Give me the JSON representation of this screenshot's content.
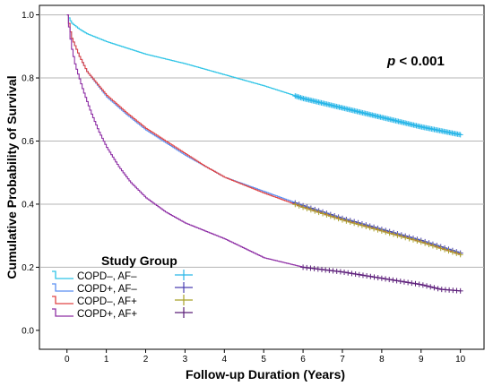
{
  "chart_data": {
    "type": "line",
    "title": "",
    "xlabel": "Follow-up Duration (Years)",
    "ylabel": "Cumulative Probability of Survival",
    "annotation": {
      "p_symbol": "p",
      "p_text": " < 0.001"
    },
    "xlim": [
      -0.7,
      10.6
    ],
    "ylim": [
      -0.06,
      1.03
    ],
    "xticks": [
      0,
      1,
      2,
      3,
      4,
      5,
      6,
      7,
      8,
      9,
      10
    ],
    "yticks": [
      0.0,
      0.2,
      0.4,
      0.6,
      0.8,
      1.0
    ],
    "ytick_labels": [
      "0.0",
      "0.2",
      "0.4",
      "0.6",
      "0.8",
      "1.0"
    ],
    "gridlines_y": [
      0.2,
      0.4,
      0.6,
      0.8,
      1.0
    ],
    "legend": {
      "title": "Study Group",
      "placement": "lower-left"
    },
    "series": [
      {
        "name": "COPD–, AF–",
        "color": "#2ec4e6",
        "censor_color": "#29b6e8",
        "censor_from": 5.8,
        "censor_density": "dense",
        "x": [
          0,
          0.1,
          0.3,
          0.5,
          1,
          1.5,
          2,
          2.5,
          3,
          4,
          5,
          6,
          7,
          8,
          9,
          10
        ],
        "y": [
          1.0,
          0.975,
          0.955,
          0.94,
          0.915,
          0.895,
          0.875,
          0.86,
          0.845,
          0.81,
          0.775,
          0.735,
          0.705,
          0.675,
          0.645,
          0.62
        ]
      },
      {
        "name": "COPD+, AF–",
        "color": "#5b8ff2",
        "censor_color": "#4a3fb0",
        "censor_from": 5.8,
        "censor_density": "sparse",
        "x": [
          0,
          0.1,
          0.3,
          0.5,
          1,
          1.5,
          2,
          2.5,
          3,
          3.5,
          4,
          5,
          6,
          7,
          8,
          9,
          10
        ],
        "y": [
          1.0,
          0.93,
          0.87,
          0.82,
          0.74,
          0.685,
          0.635,
          0.595,
          0.555,
          0.52,
          0.485,
          0.44,
          0.395,
          0.355,
          0.32,
          0.285,
          0.245
        ]
      },
      {
        "name": "COPD–, AF+",
        "color": "#e04545",
        "censor_color": "#a8a028",
        "censor_from": 5.8,
        "censor_density": "sparse",
        "x": [
          0,
          0.1,
          0.3,
          0.5,
          1,
          1.5,
          2,
          2.5,
          3,
          3.5,
          4,
          5,
          6,
          7,
          8,
          9,
          10
        ],
        "y": [
          1.0,
          0.93,
          0.87,
          0.82,
          0.745,
          0.69,
          0.64,
          0.6,
          0.56,
          0.52,
          0.485,
          0.435,
          0.39,
          0.35,
          0.315,
          0.28,
          0.24
        ]
      },
      {
        "name": "COPD+, AF+",
        "color": "#8e2fa5",
        "censor_color": "#5a1f78",
        "censor_from": 6.0,
        "censor_density": "sparse",
        "x": [
          0,
          0.1,
          0.2,
          0.4,
          0.6,
          0.8,
          1,
          1.3,
          1.6,
          2,
          2.5,
          3,
          4,
          5,
          6,
          7,
          8,
          9,
          9.5,
          10
        ],
        "y": [
          1.0,
          0.9,
          0.84,
          0.76,
          0.69,
          0.63,
          0.58,
          0.52,
          0.47,
          0.42,
          0.375,
          0.34,
          0.29,
          0.23,
          0.2,
          0.185,
          0.165,
          0.145,
          0.13,
          0.125
        ]
      }
    ]
  }
}
